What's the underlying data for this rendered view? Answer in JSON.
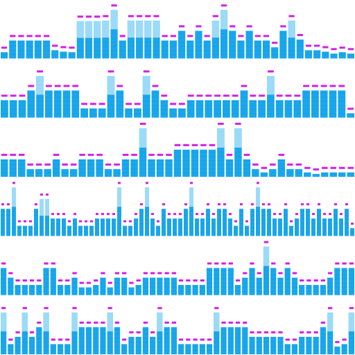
{
  "colors": {
    "background": "#ffffff",
    "bar": "#1aa7ec",
    "bar_segment_line": "#0e8fd1",
    "bar_top_light": "#c8ecfb",
    "peak_marker": "#d21ee6"
  },
  "meters": [
    {
      "levels": [
        0.13,
        0.37,
        0.37,
        0.37,
        0.37,
        0.37,
        0.17,
        0.14,
        0.13,
        0.77,
        0.77,
        0.77,
        0.78,
        1.0,
        0.37,
        0.78,
        0.78,
        0.78,
        0.78,
        0.37,
        0.37,
        0.57,
        0.37,
        0.57,
        0.37,
        0.78,
        1.0,
        0.57,
        0.37,
        0.57,
        0.37,
        0.37,
        0.23,
        0.57,
        0.78,
        0.39,
        0.17,
        0.17,
        0.14,
        0.1,
        0.13,
        0.1
      ]
    },
    {
      "levels": [
        0.36,
        0.36,
        0.36,
        0.56,
        0.86,
        0.56,
        0.56,
        0.56,
        0.56,
        0.19,
        0.19,
        0.19,
        0.86,
        0.56,
        0.19,
        0.19,
        0.86,
        0.56,
        0.36,
        0.19,
        0.19,
        0.36,
        0.36,
        0.36,
        0.36,
        0.36,
        0.36,
        0.56,
        0.36,
        0.36,
        0.86,
        0.36,
        0.36,
        0.36,
        0.56,
        0.56,
        0.56,
        0.56,
        0.56,
        0.09
      ]
    },
    {
      "levels": [
        0.36,
        0.36,
        0.36,
        0.16,
        0.16,
        0.16,
        0.36,
        0.16,
        0.16,
        0.36,
        0.36,
        0.36,
        0.16,
        0.16,
        0.36,
        0.36,
        1.0,
        0.36,
        0.36,
        0.36,
        0.56,
        0.56,
        0.56,
        0.56,
        0.56,
        1.0,
        0.36,
        1.0,
        0.36,
        0.16,
        0.09,
        0.16,
        0.36,
        0.16,
        0.16,
        0.09,
        0.06,
        0.09,
        0.09,
        0.09,
        0.09
      ]
    },
    {
      "levels": [
        0.56,
        0.56,
        1.0,
        0.21,
        0.21,
        0.21,
        0.56,
        0.76,
        0.76,
        0.36,
        0.36,
        0.36,
        0.21,
        0.36,
        0.21,
        0.21,
        0.21,
        0.36,
        0.36,
        0.36,
        0.36,
        1.0,
        0.21,
        0.21,
        0.36,
        0.56,
        1.0,
        0.36,
        0.21,
        0.56,
        0.36,
        0.36,
        0.36,
        0.56,
        1.0,
        0.36,
        0.36,
        0.56,
        0.36,
        0.56,
        0.56,
        0.36,
        0.21,
        0.56,
        0.21,
        0.56,
        1.0,
        0.56,
        0.56,
        0.36,
        0.36,
        0.56,
        0.21,
        0.36,
        0.56,
        0.56,
        0.36,
        0.56,
        0.36,
        0.36,
        0.56,
        0.36,
        0.56,
        0.16
      ]
    },
    {
      "levels": [
        0.56,
        0.36,
        0.21,
        0.21,
        0.21,
        0.21,
        0.56,
        0.56,
        0.21,
        0.21,
        0.36,
        0.16,
        0.16,
        0.21,
        0.36,
        0.16,
        0.36,
        0.36,
        0.16,
        0.21,
        0.36,
        0.36,
        0.36,
        0.36,
        0.36,
        0.21,
        0.21,
        0.21,
        0.21,
        0.56,
        0.56,
        0.56,
        0.56,
        0.21,
        0.36,
        0.56,
        0.36,
        1.0,
        0.56,
        0.36,
        0.56,
        0.36,
        0.21,
        0.21,
        0.21,
        0.21,
        0.36,
        0.56,
        0.56,
        0.56
      ]
    },
    {
      "levels": [
        0.86,
        0.21,
        0.36,
        0.86,
        0.36,
        0.56,
        0.86,
        0.21,
        0.21,
        0.21,
        0.86,
        0.56,
        0.56,
        0.56,
        0.56,
        0.86,
        0.56,
        0.21,
        0.36,
        0.36,
        0.56,
        0.36,
        0.86,
        0.56,
        0.56,
        0.21,
        0.21,
        0.21,
        0.21,
        0.21,
        0.86,
        0.56,
        0.56,
        0.56,
        0.56,
        0.36,
        0.36,
        0.36,
        0.36,
        0.36,
        0.21,
        0.21,
        0.36,
        0.36,
        0.36,
        0.56,
        0.86,
        0.16,
        0.21,
        0.86
      ]
    }
  ]
}
